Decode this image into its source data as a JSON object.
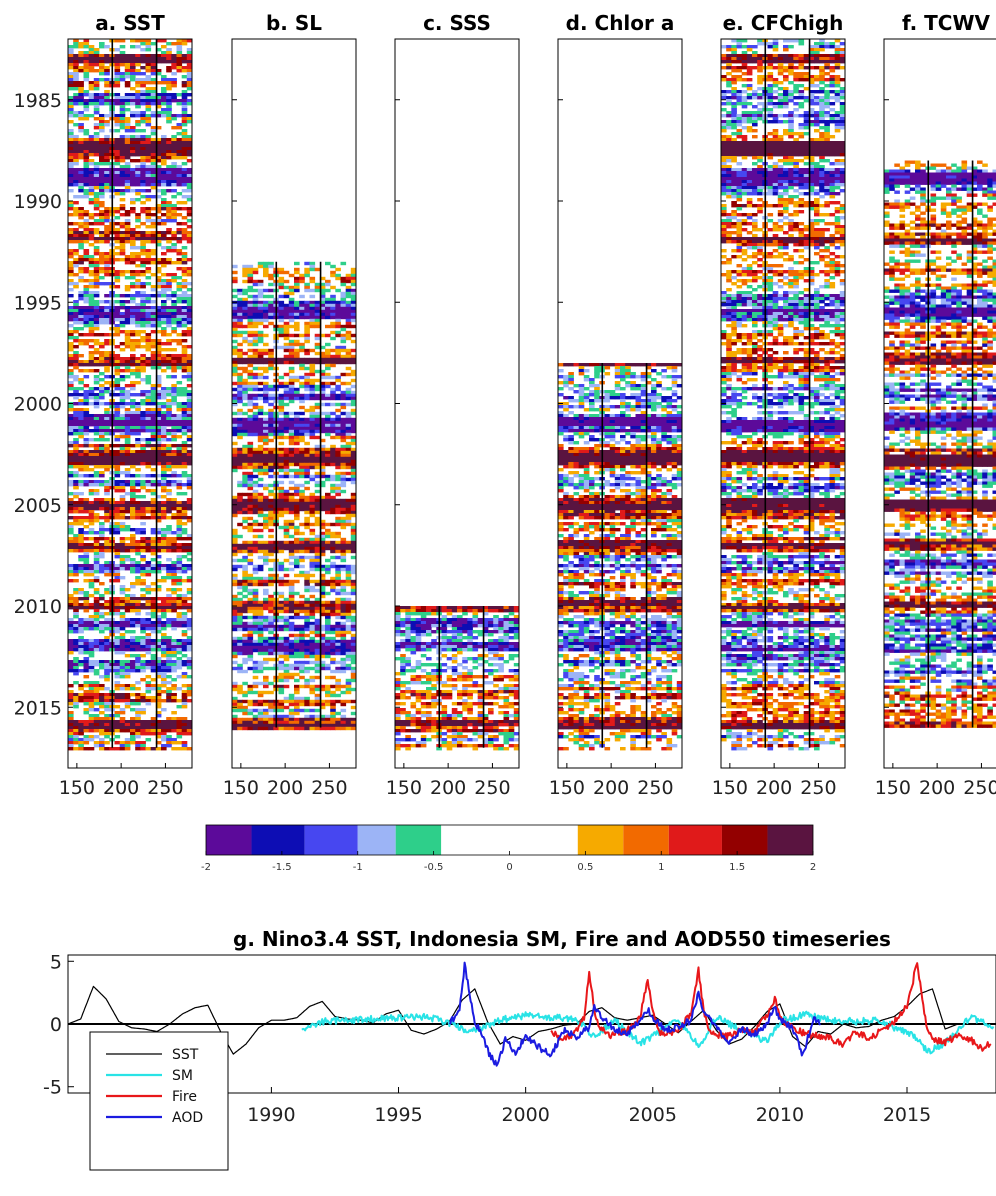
{
  "chart_data": [
    {
      "type": "heatmap",
      "panels": [
        {
          "id": "a",
          "title": "a. SST",
          "start_year": 1982,
          "end_year": 2017
        },
        {
          "id": "b",
          "title": "b. SL",
          "start_year": 1993,
          "end_year": 2016
        },
        {
          "id": "c",
          "title": "c. SSS",
          "start_year": 2010,
          "end_year": 2017
        },
        {
          "id": "d",
          "title": "d. Chlor a",
          "start_year": 1998,
          "end_year": 2017
        },
        {
          "id": "e",
          "title": "e. CFChigh",
          "start_year": 1982,
          "end_year": 2017
        },
        {
          "id": "f",
          "title": "f. TCWV",
          "start_year": 1988,
          "end_year": 2016
        }
      ],
      "x_range": [
        140,
        280
      ],
      "x_ticks": [
        150,
        200,
        250
      ],
      "reference_lines_x": [
        190,
        240
      ],
      "y_range": [
        1982,
        2018
      ],
      "y_ticks": [
        1985,
        1990,
        1995,
        2000,
        2005,
        2010,
        2015
      ],
      "colorbar": {
        "ticks": [
          "-2",
          "-1.5",
          "-1",
          "-0.5",
          "0",
          "0.5",
          "1",
          "1.5",
          "2"
        ],
        "range": [
          -2,
          2
        ],
        "colors": [
          "#5c0a9a",
          "#0d0db4",
          "#4747f0",
          "#9cb4f6",
          "#2ecf8a",
          "#ffffff",
          "#ffffff",
          "#ffffff",
          "#f6aa00",
          "#f26a00",
          "#e01a1a",
          "#930000",
          "#5a1440"
        ]
      },
      "warm_events": [
        1983.0,
        1987.3,
        1991.8,
        1997.8,
        2002.7,
        2004.9,
        2006.9,
        2009.9,
        2015.8
      ],
      "cold_events": [
        1984.8,
        1988.7,
        1995.5,
        1999.5,
        2000.9,
        2008.0,
        2010.9,
        2011.9
      ]
    },
    {
      "type": "line",
      "title": "g. Nino3.4 SST, Indonesia SM, Fire and AOD550 timeseries",
      "xlim": [
        1982,
        2018.5
      ],
      "ylim": [
        -5.5,
        5.5
      ],
      "x_ticks": [
        1985,
        1990,
        1995,
        2000,
        2005,
        2010,
        2015
      ],
      "y_ticks": [
        -5,
        0,
        5
      ],
      "legend_position": "left",
      "series": [
        {
          "name": "SST",
          "color": "#000000",
          "x": [
            1982.0,
            1982.5,
            1983.0,
            1983.5,
            1984.0,
            1984.5,
            1985.0,
            1985.5,
            1986.0,
            1986.5,
            1987.0,
            1987.5,
            1988.0,
            1988.5,
            1989.0,
            1989.5,
            1990.0,
            1990.5,
            1991.0,
            1991.5,
            1992.0,
            1992.5,
            1993.0,
            1993.5,
            1994.0,
            1994.5,
            1995.0,
            1995.5,
            1996.0,
            1996.5,
            1997.0,
            1997.5,
            1998.0,
            1998.5,
            1999.0,
            1999.5,
            2000.0,
            2000.5,
            2001.0,
            2001.5,
            2002.0,
            2002.5,
            2003.0,
            2003.5,
            2004.0,
            2004.5,
            2005.0,
            2005.5,
            2006.0,
            2006.5,
            2007.0,
            2007.5,
            2008.0,
            2008.5,
            2009.0,
            2009.5,
            2010.0,
            2010.5,
            2011.0,
            2011.5,
            2012.0,
            2012.5,
            2013.0,
            2013.5,
            2014.0,
            2014.5,
            2015.0,
            2015.5,
            2016.0,
            2016.5,
            2017.0
          ],
          "y": [
            0.0,
            0.4,
            3.0,
            2.0,
            0.2,
            -0.3,
            -0.4,
            -0.6,
            0.0,
            0.8,
            1.3,
            1.5,
            -0.6,
            -2.4,
            -1.6,
            -0.3,
            0.3,
            0.3,
            0.5,
            1.4,
            1.8,
            0.6,
            0.4,
            0.3,
            0.1,
            0.8,
            1.1,
            -0.5,
            -0.8,
            -0.4,
            0.2,
            1.9,
            2.8,
            0.2,
            -1.6,
            -1.0,
            -1.3,
            -0.6,
            -0.4,
            -0.1,
            0.0,
            1.0,
            1.3,
            0.5,
            0.3,
            0.5,
            0.7,
            0.0,
            -0.7,
            0.2,
            1.1,
            -0.5,
            -1.6,
            -1.2,
            -0.2,
            1.0,
            1.6,
            -1.0,
            -1.8,
            -0.6,
            -0.8,
            0.0,
            -0.3,
            -0.2,
            0.3,
            0.6,
            1.4,
            2.4,
            2.8,
            -0.4,
            0.0
          ]
        },
        {
          "name": "SM",
          "color": "#29e3e6",
          "x": [
            1991.2,
            1992.0,
            1993.0,
            1994.0,
            1995.0,
            1996.0,
            1997.0,
            1997.7,
            1998.3,
            1999.0,
            2000.0,
            2001.0,
            2002.0,
            2002.7,
            2003.5,
            2004.5,
            2005.0,
            2006.0,
            2006.8,
            2007.5,
            2008.5,
            2009.5,
            2010.0,
            2011.0,
            2012.0,
            2013.0,
            2014.0,
            2014.7,
            2015.3,
            2015.8,
            2016.5,
            2017.5,
            2018.4
          ],
          "y": [
            -0.5,
            0.2,
            0.3,
            0.4,
            0.5,
            0.6,
            0.1,
            -0.6,
            -0.3,
            0.3,
            0.7,
            0.5,
            0.4,
            -1.0,
            0.3,
            -1.5,
            -1.0,
            0.4,
            -1.8,
            0.5,
            -0.5,
            -1.4,
            0.2,
            0.8,
            0.3,
            0.2,
            0.3,
            -0.5,
            -0.9,
            -2.2,
            -1.5,
            0.6,
            -0.2
          ]
        },
        {
          "name": "Fire",
          "color": "#e8171a",
          "x": [
            2001.0,
            2001.5,
            2002.0,
            2002.3,
            2002.5,
            2002.7,
            2002.9,
            2003.3,
            2004.0,
            2004.5,
            2004.8,
            2005.0,
            2005.3,
            2006.0,
            2006.5,
            2006.8,
            2007.0,
            2007.3,
            2008.0,
            2008.5,
            2009.0,
            2009.5,
            2009.8,
            2010.1,
            2011.0,
            2011.8,
            2012.5,
            2013.0,
            2013.5,
            2014.0,
            2014.5,
            2015.0,
            2015.4,
            2015.6,
            2015.8,
            2016.0,
            2016.5,
            2017.0,
            2017.5,
            2017.8,
            2018.3
          ],
          "y": [
            -0.6,
            -1.2,
            -0.6,
            0.5,
            4.1,
            1.2,
            -0.3,
            -0.9,
            -0.5,
            0.4,
            3.6,
            1.0,
            -0.8,
            -0.5,
            0.8,
            4.3,
            1.0,
            -0.8,
            -1.0,
            -0.5,
            -0.7,
            0.8,
            2.0,
            0.2,
            -0.8,
            -1.0,
            -1.6,
            -0.6,
            -1.2,
            -0.5,
            0.2,
            1.4,
            4.9,
            2.0,
            -0.6,
            -1.2,
            -1.5,
            -0.9,
            -1.2,
            -2.0,
            -1.6
          ]
        },
        {
          "name": "AOD",
          "color": "#1b1be0",
          "x": [
            1997.0,
            1997.4,
            1997.6,
            1997.8,
            1998.0,
            1998.3,
            1998.6,
            1998.9,
            1999.2,
            1999.6,
            2000.0,
            2000.5,
            2001.0,
            2001.5,
            2002.0,
            2002.5,
            2002.7,
            2003.0,
            2003.5,
            2004.0,
            2004.5,
            2004.8,
            2005.0,
            2005.5,
            2006.0,
            2006.5,
            2006.8,
            2007.0,
            2007.5,
            2008.0,
            2008.5,
            2009.0,
            2009.5,
            2009.8,
            2010.0,
            2010.5,
            2010.9,
            2011.3,
            2011.6
          ],
          "y": [
            0.0,
            1.0,
            4.7,
            2.5,
            0.2,
            -1.0,
            -2.6,
            -3.2,
            -1.3,
            -2.3,
            -1.0,
            -1.8,
            -2.5,
            -0.5,
            -1.0,
            -0.3,
            1.4,
            0.6,
            -0.5,
            -0.8,
            0.3,
            1.2,
            0.5,
            -0.5,
            -0.2,
            0.3,
            2.5,
            1.0,
            -0.3,
            -1.7,
            -0.4,
            -0.8,
            0.0,
            1.4,
            0.3,
            -0.3,
            -2.6,
            0.4,
            0.0
          ]
        }
      ]
    }
  ]
}
